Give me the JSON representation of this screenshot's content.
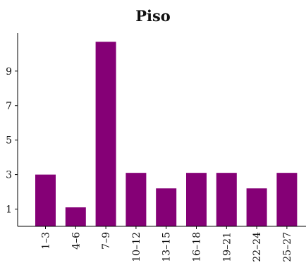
{
  "chart_data": {
    "type": "bar",
    "title": "Piso",
    "xlabel": "",
    "ylabel": "",
    "categories": [
      "1–3",
      "4–6",
      "7–9",
      "10–12",
      "13–15",
      "16–18",
      "19–21",
      "22–24",
      "25–27"
    ],
    "values": [
      3.0,
      1.1,
      10.7,
      3.1,
      2.2,
      3.1,
      3.1,
      2.2,
      3.1
    ],
    "yticks": [
      1,
      3,
      5,
      7,
      9
    ],
    "ylim": [
      0,
      11.2
    ],
    "grid": false,
    "legend": "none",
    "bar_color": "#850076"
  }
}
